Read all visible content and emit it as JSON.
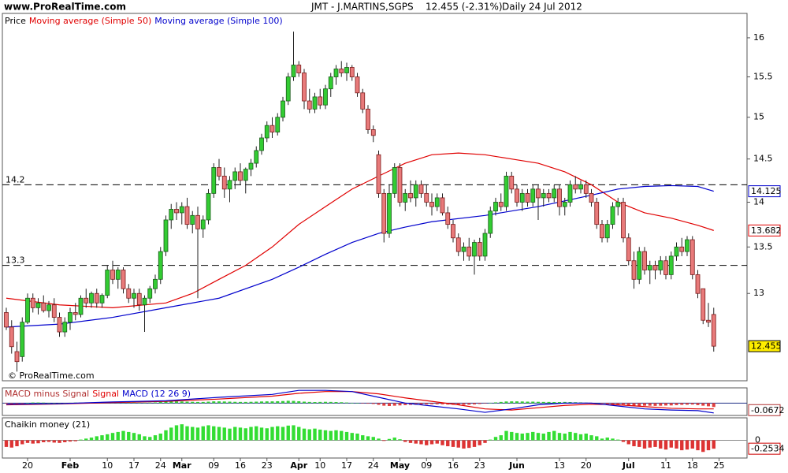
{
  "header": {
    "site": "www.ProRealTime.com",
    "symbol": "JMT - J.MARTINS,SGPS",
    "quote": "12.455 (-2.31%)",
    "period": "Daily",
    "date": "24 Jul 2012"
  },
  "chart_data": [
    {
      "type": "candlestick",
      "name": "Price",
      "copyright": "© ProRealTime.com",
      "log_scale": true,
      "up_color": "#33cc33",
      "down_color": "#e87a7a",
      "ylim": [
        12.11,
        16.32
      ],
      "yticks": [
        16,
        15.5,
        15,
        14.5,
        14,
        13.5,
        13
      ],
      "hlines": [
        14.2,
        13.3
      ],
      "open": [
        12.8,
        12.65,
        12.4,
        12.35,
        12.7,
        12.95,
        12.85,
        12.9,
        12.82,
        12.88,
        12.75,
        12.6,
        12.7,
        12.8,
        12.78,
        12.95,
        12.9,
        13.0,
        12.9,
        12.98,
        13.25,
        13.15,
        13.25,
        13.05,
        12.95,
        13.0,
        12.88,
        12.95,
        13.05,
        13.15,
        13.45,
        13.8,
        13.92,
        13.88,
        13.95,
        13.75,
        13.85,
        13.7,
        13.8,
        14.1,
        14.4,
        14.3,
        14.15,
        14.25,
        14.35,
        14.25,
        14.38,
        14.45,
        14.6,
        14.75,
        14.9,
        14.82,
        15.0,
        15.2,
        15.5,
        15.65,
        15.55,
        15.2,
        15.1,
        15.25,
        15.15,
        15.35,
        15.5,
        15.6,
        15.55,
        15.62,
        15.5,
        15.3,
        15.1,
        14.85,
        14.55,
        14.1,
        13.65,
        14.1,
        14.4,
        14.0,
        14.1,
        14.05,
        14.2,
        14.1,
        14.0,
        13.95,
        14.05,
        13.88,
        13.75,
        13.6,
        13.45,
        13.5,
        13.4,
        13.55,
        13.4,
        13.65,
        13.9,
        14.0,
        13.95,
        14.3,
        14.15,
        14.0,
        14.1,
        14.0,
        14.15,
        14.05,
        14.1,
        14.05,
        14.15,
        13.95,
        14.0,
        14.2,
        14.15,
        14.2,
        14.1,
        14.0,
        13.75,
        13.6,
        13.75,
        13.95,
        14.0,
        13.6,
        13.35,
        13.15,
        13.45,
        13.25,
        13.3,
        13.25,
        13.35,
        13.2,
        13.4,
        13.5,
        13.45,
        13.58,
        13.2,
        13.05,
        12.72,
        12.78,
        null
      ],
      "high": [
        12.85,
        12.72,
        12.5,
        12.75,
        13.0,
        13.0,
        12.95,
        12.98,
        12.92,
        12.95,
        12.8,
        12.75,
        12.85,
        12.9,
        12.98,
        13.05,
        13.02,
        13.05,
        13.0,
        13.3,
        13.35,
        13.28,
        13.28,
        13.1,
        13.05,
        13.05,
        12.98,
        13.08,
        13.2,
        13.5,
        13.85,
        13.98,
        14.0,
        14.0,
        14.05,
        13.9,
        13.95,
        13.85,
        14.15,
        14.45,
        14.5,
        14.4,
        14.3,
        14.4,
        14.45,
        14.4,
        14.5,
        14.65,
        14.8,
        14.95,
        15.0,
        15.05,
        15.25,
        15.55,
        16.08,
        15.7,
        15.6,
        15.35,
        15.3,
        15.35,
        15.4,
        15.55,
        15.65,
        15.7,
        15.68,
        15.65,
        15.55,
        15.35,
        15.15,
        14.9,
        14.6,
        14.15,
        14.2,
        14.45,
        14.45,
        14.15,
        14.25,
        14.25,
        14.25,
        14.2,
        14.1,
        14.1,
        14.1,
        13.95,
        13.8,
        13.65,
        13.55,
        13.6,
        13.58,
        13.6,
        13.7,
        13.95,
        14.05,
        14.1,
        14.35,
        14.35,
        14.2,
        14.15,
        14.15,
        14.2,
        14.2,
        14.15,
        14.15,
        14.2,
        14.2,
        14.05,
        14.25,
        14.3,
        14.25,
        14.25,
        14.15,
        14.05,
        13.8,
        13.8,
        14.0,
        14.05,
        14.05,
        13.65,
        13.45,
        13.5,
        13.5,
        13.35,
        13.35,
        13.4,
        13.4,
        13.45,
        13.55,
        13.6,
        13.62,
        13.62,
        13.25,
        13.05,
        12.9,
        12.85,
        null
      ],
      "low": [
        12.62,
        12.38,
        12.2,
        12.3,
        12.68,
        12.8,
        12.78,
        12.8,
        12.75,
        12.7,
        12.55,
        12.55,
        12.62,
        12.72,
        12.75,
        12.85,
        12.85,
        12.85,
        12.85,
        12.95,
        13.1,
        13.05,
        13.0,
        12.9,
        12.85,
        12.82,
        12.6,
        12.9,
        13.0,
        13.1,
        13.4,
        13.7,
        13.8,
        13.75,
        13.7,
        13.65,
        12.95,
        13.6,
        13.75,
        14.05,
        14.25,
        14.05,
        14.0,
        14.15,
        14.2,
        14.1,
        14.3,
        14.4,
        14.55,
        14.7,
        14.75,
        14.78,
        14.95,
        15.15,
        15.45,
        15.5,
        15.1,
        15.05,
        15.05,
        15.1,
        15.1,
        15.25,
        15.4,
        15.5,
        15.45,
        15.45,
        15.25,
        15.05,
        14.8,
        14.7,
        14.05,
        13.55,
        13.6,
        14.05,
        13.95,
        13.9,
        14.0,
        13.95,
        14.05,
        13.95,
        13.85,
        13.9,
        13.85,
        13.7,
        13.55,
        13.4,
        13.35,
        13.35,
        13.2,
        13.35,
        13.35,
        13.6,
        13.85,
        13.9,
        13.9,
        14.1,
        13.95,
        13.9,
        13.95,
        13.95,
        13.8,
        13.95,
        14.0,
        14.0,
        13.85,
        13.85,
        13.95,
        14.1,
        14.1,
        14.05,
        13.95,
        13.7,
        13.55,
        13.55,
        13.7,
        13.85,
        13.55,
        13.3,
        13.05,
        13.1,
        13.2,
        13.1,
        13.15,
        13.2,
        13.15,
        13.15,
        13.35,
        13.4,
        13.4,
        13.15,
        12.95,
        12.68,
        12.65,
        12.4,
        null
      ],
      "close": [
        12.65,
        12.45,
        12.3,
        12.7,
        12.95,
        12.85,
        12.9,
        12.82,
        12.88,
        12.75,
        12.6,
        12.7,
        12.8,
        12.78,
        12.95,
        12.9,
        13.0,
        12.9,
        12.98,
        13.25,
        13.15,
        13.25,
        13.05,
        12.95,
        13.0,
        12.88,
        12.95,
        13.05,
        13.15,
        13.45,
        13.8,
        13.92,
        13.88,
        13.95,
        13.75,
        13.85,
        13.7,
        13.8,
        14.1,
        14.4,
        14.3,
        14.15,
        14.25,
        14.35,
        14.25,
        14.38,
        14.45,
        14.6,
        14.75,
        14.9,
        14.82,
        15.0,
        15.2,
        15.5,
        15.65,
        15.55,
        15.2,
        15.1,
        15.25,
        15.15,
        15.35,
        15.5,
        15.6,
        15.55,
        15.62,
        15.5,
        15.3,
        15.1,
        14.85,
        14.78,
        14.1,
        13.65,
        14.1,
        14.4,
        14.0,
        14.1,
        14.05,
        14.2,
        14.1,
        14.0,
        13.95,
        14.05,
        13.88,
        13.75,
        13.6,
        13.45,
        13.5,
        13.4,
        13.55,
        13.4,
        13.65,
        13.9,
        14.0,
        13.95,
        14.3,
        14.15,
        14.0,
        14.1,
        14.0,
        14.15,
        14.05,
        14.1,
        14.05,
        14.15,
        13.95,
        14.0,
        14.2,
        14.15,
        14.2,
        14.1,
        14.0,
        13.75,
        13.6,
        13.75,
        13.95,
        14.0,
        13.6,
        13.35,
        13.15,
        13.45,
        13.25,
        13.3,
        13.25,
        13.35,
        13.2,
        13.4,
        13.5,
        13.45,
        13.58,
        13.2,
        13.0,
        12.72,
        12.7,
        12.455,
        null
      ],
      "series": [
        {
          "name": "Moving average (Simple 50)",
          "color": "#e00000",
          "x": [
            0,
            10,
            20,
            30,
            35,
            40,
            45,
            50,
            55,
            60,
            65,
            70,
            75,
            80,
            85,
            90,
            95,
            100,
            105,
            110,
            115,
            120,
            125,
            130,
            133
          ],
          "values": [
            12.95,
            12.88,
            12.85,
            12.9,
            13.0,
            13.15,
            13.3,
            13.5,
            13.75,
            13.95,
            14.15,
            14.3,
            14.45,
            14.55,
            14.57,
            14.55,
            14.5,
            14.45,
            14.35,
            14.2,
            14.0,
            13.88,
            13.82,
            13.74,
            13.682
          ]
        },
        {
          "name": "Moving average (Simple 100)",
          "color": "#0000cc",
          "x": [
            0,
            10,
            20,
            30,
            40,
            50,
            55,
            60,
            65,
            70,
            75,
            80,
            90,
            100,
            110,
            115,
            120,
            125,
            130,
            133
          ],
          "values": [
            12.65,
            12.68,
            12.75,
            12.85,
            12.95,
            13.15,
            13.28,
            13.42,
            13.55,
            13.65,
            13.72,
            13.78,
            13.85,
            13.95,
            14.08,
            14.15,
            14.18,
            14.19,
            14.18,
            14.125
          ]
        }
      ]
    },
    {
      "type": "indicator",
      "ylim": [
        -0.2,
        0.25
      ],
      "series": [
        {
          "name": "MACD minus Signal",
          "type": "bar",
          "up_color": "#33cc33",
          "down_color": "#e04040",
          "color": "#b03030",
          "values": [
            -0.01,
            -0.015,
            -0.02,
            -0.01,
            0.005,
            0.01,
            0.01,
            0.008,
            0.005,
            0.004,
            0.003,
            0.004,
            0.006,
            0.008,
            0.01,
            0.012,
            0.012,
            0.01,
            0.01,
            0.015,
            0.018,
            0.015,
            0.012,
            0.01,
            0.008,
            0.006,
            0.006,
            0.008,
            0.012,
            0.02,
            0.028,
            0.032,
            0.03,
            0.028,
            0.025,
            0.022,
            0.02,
            0.02,
            0.025,
            0.03,
            0.03,
            0.028,
            0.025,
            0.022,
            0.02,
            0.02,
            0.022,
            0.025,
            0.028,
            0.03,
            0.03,
            0.032,
            0.035,
            0.04,
            0.038,
            0.032,
            0.025,
            0.02,
            0.018,
            0.02,
            0.022,
            0.02,
            0.018,
            0.015,
            0.01,
            0.005,
            0.0,
            -0.005,
            -0.01,
            -0.015,
            -0.03,
            -0.045,
            -0.05,
            -0.045,
            -0.04,
            -0.035,
            -0.03,
            -0.028,
            -0.025,
            -0.022,
            -0.02,
            -0.02,
            -0.022,
            -0.025,
            -0.028,
            -0.03,
            -0.03,
            -0.028,
            -0.022,
            -0.015,
            -0.005,
            0.005,
            0.012,
            0.02,
            0.028,
            0.03,
            0.03,
            0.028,
            0.025,
            0.025,
            0.022,
            0.02,
            0.02,
            0.018,
            0.018,
            0.02,
            0.018,
            0.015,
            0.012,
            0.008,
            0.004,
            0.0,
            -0.01,
            -0.02,
            -0.025,
            -0.02,
            -0.025,
            -0.035,
            -0.045,
            -0.05,
            -0.045,
            -0.045,
            -0.048,
            -0.045,
            -0.042,
            -0.04,
            -0.035,
            -0.03,
            -0.028,
            -0.025,
            -0.035,
            -0.045,
            -0.055,
            -0.0672,
            null
          ]
        },
        {
          "name": "Signal",
          "type": "line",
          "color": "#e00000",
          "x": [
            0,
            10,
            20,
            30,
            40,
            50,
            55,
            60,
            65,
            70,
            75,
            80,
            85,
            90,
            95,
            100,
            105,
            110,
            115,
            120,
            125,
            130,
            133
          ],
          "values": [
            -0.03,
            -0.015,
            0.01,
            0.03,
            0.07,
            0.12,
            0.17,
            0.2,
            0.2,
            0.16,
            0.09,
            0.03,
            -0.03,
            -0.1,
            -0.12,
            -0.08,
            -0.04,
            -0.02,
            -0.03,
            -0.06,
            -0.09,
            -0.1,
            -0.1
          ]
        },
        {
          "name": "MACD (12 26 9)",
          "type": "line",
          "color": "#0000cc",
          "x": [
            0,
            10,
            20,
            30,
            40,
            50,
            55,
            60,
            65,
            70,
            75,
            80,
            85,
            90,
            95,
            100,
            105,
            110,
            115,
            120,
            125,
            130,
            133
          ],
          "values": [
            -0.02,
            -0.01,
            0.02,
            0.04,
            0.1,
            0.15,
            0.22,
            0.22,
            0.2,
            0.1,
            0.0,
            -0.05,
            -0.1,
            -0.16,
            -0.1,
            -0.03,
            0.0,
            0.0,
            -0.05,
            -0.1,
            -0.12,
            -0.13,
            -0.17
          ]
        }
      ]
    },
    {
      "type": "bar",
      "name": "Chaikin money (21)",
      "up_color": "#33dd33",
      "down_color": "#dd3333",
      "label_color": "#cc0000",
      "ylim": [
        -0.51,
        0.65
      ],
      "yticks": [
        0
      ],
      "categories": [
        null,
        null,
        null,
        null,
        "20",
        null,
        null,
        null,
        null,
        null,
        null,
        null,
        "Feb",
        null,
        null,
        null,
        null,
        null,
        null,
        "10",
        null,
        null,
        null,
        null,
        "17",
        null,
        null,
        null,
        null,
        "24",
        null,
        null,
        null,
        "Mar",
        null,
        null,
        null,
        null,
        null,
        "09",
        null,
        null,
        null,
        null,
        "16",
        null,
        null,
        null,
        null,
        "23",
        null,
        null,
        null,
        null,
        null,
        "Apr",
        null,
        null,
        null,
        "10",
        null,
        null,
        null,
        null,
        "17",
        null,
        null,
        null,
        null,
        "24",
        null,
        null,
        null,
        null,
        "May",
        null,
        null,
        null,
        null,
        "09",
        null,
        null,
        null,
        null,
        "16",
        null,
        null,
        null,
        null,
        "23",
        null,
        null,
        null,
        null,
        null,
        null,
        "Jun",
        null,
        null,
        null,
        null,
        null,
        null,
        null,
        "13",
        null,
        null,
        null,
        null,
        "20",
        null,
        null,
        null,
        null,
        null,
        null,
        null,
        "Jul",
        null,
        null,
        null,
        null,
        null,
        null,
        "11",
        null,
        null,
        null,
        null,
        "18",
        null,
        null,
        null,
        null,
        "25"
      ],
      "values": [
        -0.2,
        -0.22,
        -0.18,
        -0.12,
        -0.08,
        -0.1,
        -0.09,
        -0.06,
        -0.05,
        -0.07,
        -0.08,
        -0.06,
        -0.04,
        -0.03,
        0.02,
        0.05,
        0.08,
        0.12,
        0.15,
        0.18,
        0.22,
        0.25,
        0.28,
        0.25,
        0.22,
        0.18,
        0.12,
        0.1,
        0.15,
        0.2,
        0.3,
        0.38,
        0.45,
        0.48,
        0.42,
        0.4,
        0.38,
        0.42,
        0.45,
        0.42,
        0.4,
        0.38,
        0.35,
        0.4,
        0.38,
        0.36,
        0.4,
        0.42,
        0.38,
        0.36,
        0.4,
        0.42,
        0.4,
        0.44,
        0.45,
        0.4,
        0.35,
        0.33,
        0.35,
        0.32,
        0.3,
        0.28,
        0.3,
        0.28,
        0.25,
        0.22,
        0.2,
        0.15,
        0.12,
        0.1,
        0.05,
        -0.02,
        0.04,
        0.08,
        0.03,
        -0.05,
        -0.08,
        -0.1,
        -0.12,
        -0.15,
        -0.12,
        -0.1,
        -0.15,
        -0.18,
        -0.2,
        -0.22,
        -0.25,
        -0.23,
        -0.2,
        -0.15,
        -0.08,
        0.02,
        0.1,
        0.15,
        0.28,
        0.25,
        0.22,
        0.2,
        0.22,
        0.25,
        0.22,
        0.2,
        0.25,
        0.28,
        0.22,
        0.2,
        0.25,
        0.22,
        0.18,
        0.2,
        0.15,
        0.12,
        0.05,
        0.08,
        0.05,
        0.02,
        -0.05,
        -0.12,
        -0.18,
        -0.2,
        -0.25,
        -0.22,
        -0.2,
        -0.25,
        -0.28,
        -0.22,
        -0.25,
        -0.3,
        -0.28,
        -0.25,
        -0.3,
        -0.35,
        -0.3,
        -0.2534,
        null
      ]
    }
  ]
}
